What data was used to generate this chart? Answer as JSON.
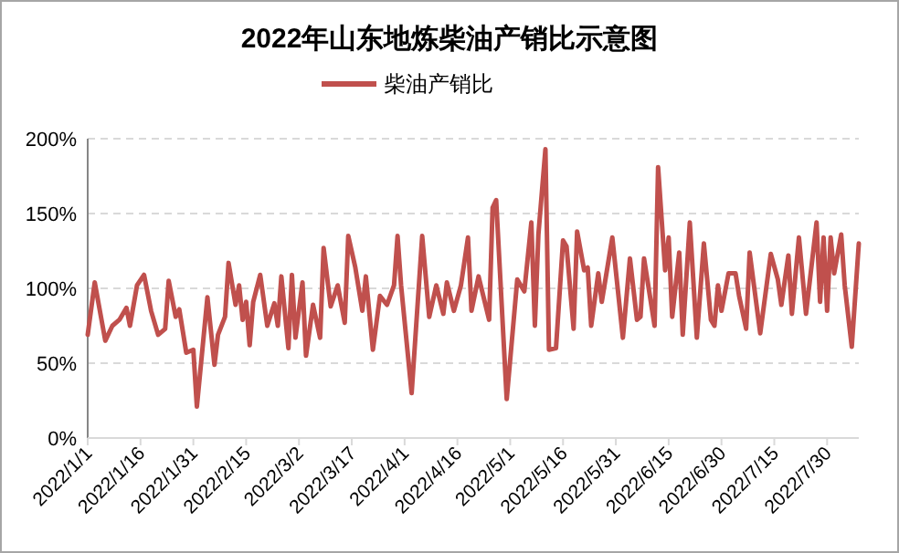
{
  "chart_data": {
    "type": "line",
    "title": "2022年山东地炼柴油产销比示意图",
    "x": [
      "2022-01-01",
      "2022-01-03",
      "2022-01-06",
      "2022-01-08",
      "2022-01-10",
      "2022-01-12",
      "2022-01-13",
      "2022-01-15",
      "2022-01-17",
      "2022-01-19",
      "2022-01-21",
      "2022-01-23",
      "2022-01-24",
      "2022-01-26",
      "2022-01-27",
      "2022-01-29",
      "2022-01-31",
      "2022-02-01",
      "2022-02-04",
      "2022-02-06",
      "2022-02-07",
      "2022-02-09",
      "2022-02-10",
      "2022-02-12",
      "2022-02-13",
      "2022-02-14",
      "2022-02-15",
      "2022-02-16",
      "2022-02-17",
      "2022-02-19",
      "2022-02-21",
      "2022-02-23",
      "2022-02-24",
      "2022-02-25",
      "2022-02-27",
      "2022-02-28",
      "2022-03-01",
      "2022-03-03",
      "2022-03-04",
      "2022-03-06",
      "2022-03-08",
      "2022-03-09",
      "2022-03-11",
      "2022-03-13",
      "2022-03-15",
      "2022-03-16",
      "2022-03-18",
      "2022-03-20",
      "2022-03-21",
      "2022-03-23",
      "2022-03-25",
      "2022-03-27",
      "2022-03-29",
      "2022-03-30",
      "2022-03-31",
      "2022-04-03",
      "2022-04-06",
      "2022-04-08",
      "2022-04-10",
      "2022-04-12",
      "2022-04-13",
      "2022-04-15",
      "2022-04-17",
      "2022-04-19",
      "2022-04-20",
      "2022-04-22",
      "2022-04-25",
      "2022-04-26",
      "2022-04-27",
      "2022-04-30",
      "2022-05-03",
      "2022-05-05",
      "2022-05-07",
      "2022-05-08",
      "2022-05-09",
      "2022-05-11",
      "2022-05-12",
      "2022-05-14",
      "2022-05-16",
      "2022-05-17",
      "2022-05-19",
      "2022-05-20",
      "2022-05-22",
      "2022-05-23",
      "2022-05-24",
      "2022-05-26",
      "2022-05-27",
      "2022-05-30",
      "2022-06-02",
      "2022-06-04",
      "2022-06-06",
      "2022-06-07",
      "2022-06-08",
      "2022-06-11",
      "2022-06-12",
      "2022-06-14",
      "2022-06-15",
      "2022-06-16",
      "2022-06-18",
      "2022-06-19",
      "2022-06-21",
      "2022-06-23",
      "2022-06-25",
      "2022-06-27",
      "2022-06-28",
      "2022-06-29",
      "2022-06-30",
      "2022-07-02",
      "2022-07-04",
      "2022-07-05",
      "2022-07-07",
      "2022-07-08",
      "2022-07-11",
      "2022-07-14",
      "2022-07-16",
      "2022-07-17",
      "2022-07-19",
      "2022-07-20",
      "2022-07-22",
      "2022-07-24",
      "2022-07-27",
      "2022-07-28",
      "2022-07-29",
      "2022-07-30",
      "2022-07-31",
      "2022-08-01",
      "2022-08-03",
      "2022-08-04",
      "2022-08-06",
      "2022-08-08"
    ],
    "series": [
      {
        "name": "柴油产销比",
        "color": "#c0504d",
        "values": [
          69,
          104,
          65,
          75,
          79,
          87,
          75,
          102,
          109,
          85,
          69,
          73,
          105,
          81,
          86,
          57,
          59,
          21,
          94,
          49,
          69,
          81,
          117,
          89,
          102,
          79,
          91,
          62,
          91,
          109,
          75,
          90,
          75,
          108,
          60,
          109,
          67,
          104,
          55,
          89,
          67,
          127,
          88,
          102,
          77,
          135,
          114,
          85,
          108,
          59,
          95,
          89,
          102,
          135,
          102,
          30,
          135,
          81,
          102,
          83,
          104,
          85,
          102,
          134,
          85,
          108,
          79,
          154,
          159,
          26,
          106,
          98,
          144,
          75,
          136,
          193,
          59,
          60,
          132,
          128,
          73,
          138,
          112,
          114,
          75,
          110,
          91,
          134,
          67,
          120,
          79,
          81,
          120,
          75,
          181,
          112,
          134,
          81,
          124,
          69,
          144,
          67,
          130,
          79,
          75,
          102,
          85,
          110,
          110,
          95,
          73,
          124,
          70,
          123,
          106,
          89,
          122,
          83,
          134,
          83,
          144,
          91,
          134,
          85,
          134,
          110,
          136,
          102,
          61,
          130
        ]
      }
    ],
    "xlim": [
      "2022-01-01",
      "2022-08-08"
    ],
    "xticks": [
      {
        "value": "2022-01-01",
        "label": "2022/1/1"
      },
      {
        "value": "2022-01-16",
        "label": "2022/1/16"
      },
      {
        "value": "2022-01-31",
        "label": "2022/1/31"
      },
      {
        "value": "2022-02-15",
        "label": "2022/2/15"
      },
      {
        "value": "2022-03-02",
        "label": "2022/3/2"
      },
      {
        "value": "2022-03-17",
        "label": "2022/3/17"
      },
      {
        "value": "2022-04-01",
        "label": "2022/4/1"
      },
      {
        "value": "2022-04-16",
        "label": "2022/4/16"
      },
      {
        "value": "2022-05-01",
        "label": "2022/5/1"
      },
      {
        "value": "2022-05-16",
        "label": "2022/5/16"
      },
      {
        "value": "2022-05-31",
        "label": "2022/5/31"
      },
      {
        "value": "2022-06-15",
        "label": "2022/6/15"
      },
      {
        "value": "2022-06-30",
        "label": "2022/6/30"
      },
      {
        "value": "2022-07-15",
        "label": "2022/7/15"
      },
      {
        "value": "2022-07-30",
        "label": "2022/7/30"
      }
    ],
    "ylim": [
      0,
      200
    ],
    "yticks": [
      {
        "value": 0,
        "label": "0%"
      },
      {
        "value": 50,
        "label": "50%"
      },
      {
        "value": 100,
        "label": "100%"
      },
      {
        "value": 150,
        "label": "150%"
      },
      {
        "value": 200,
        "label": "200%"
      }
    ],
    "grid": "y",
    "legend": "top"
  }
}
